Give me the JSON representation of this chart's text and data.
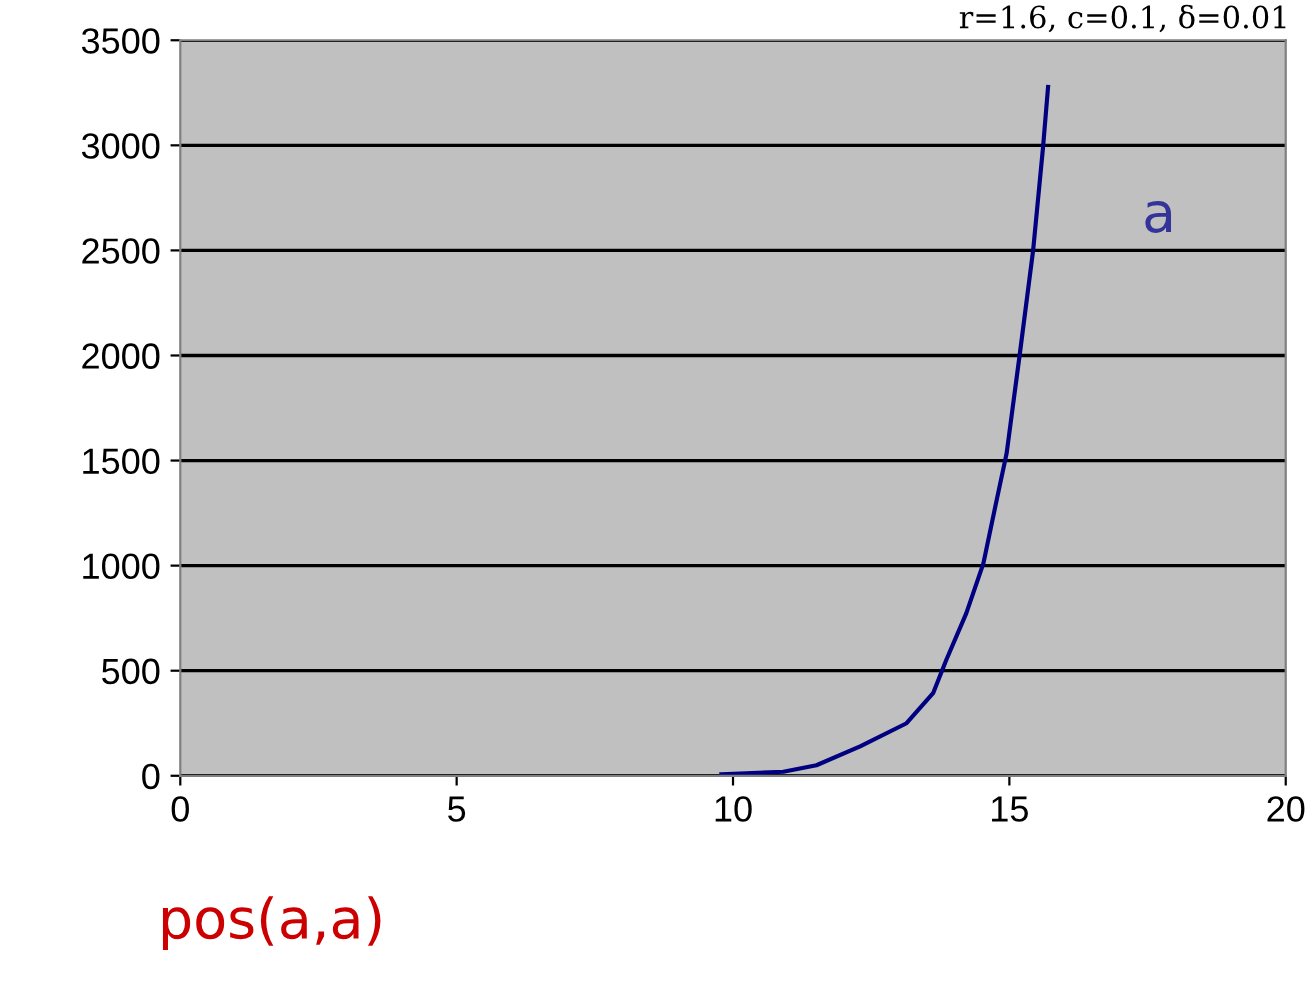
{
  "chart_data": {
    "type": "line",
    "xlim": [
      0,
      20
    ],
    "xticks": [
      0,
      5,
      10,
      15,
      20
    ],
    "ylim": [
      0,
      3500
    ],
    "yticks": [
      0,
      500,
      1000,
      1500,
      2000,
      2500,
      3000,
      3500
    ],
    "grid": "y",
    "legend": false,
    "marker": "none",
    "line_style": "solid",
    "series": [
      {
        "name": "a",
        "color": "#000080",
        "x": [
          9.79,
          10.91,
          11.51,
          12.3,
          13.14,
          13.62,
          13.86,
          14.22,
          14.53,
          14.77,
          14.95,
          15.19,
          15.43,
          15.61,
          15.7
        ],
        "values": [
          7,
          19,
          50,
          140,
          250,
          393,
          552,
          773,
          1011,
          1312,
          1534,
          2010,
          2501,
          2993,
          3278
        ]
      }
    ],
    "annotations": [
      "r=1.6, c=0.1, δ=0.01",
      "pos(a,a)"
    ]
  }
}
